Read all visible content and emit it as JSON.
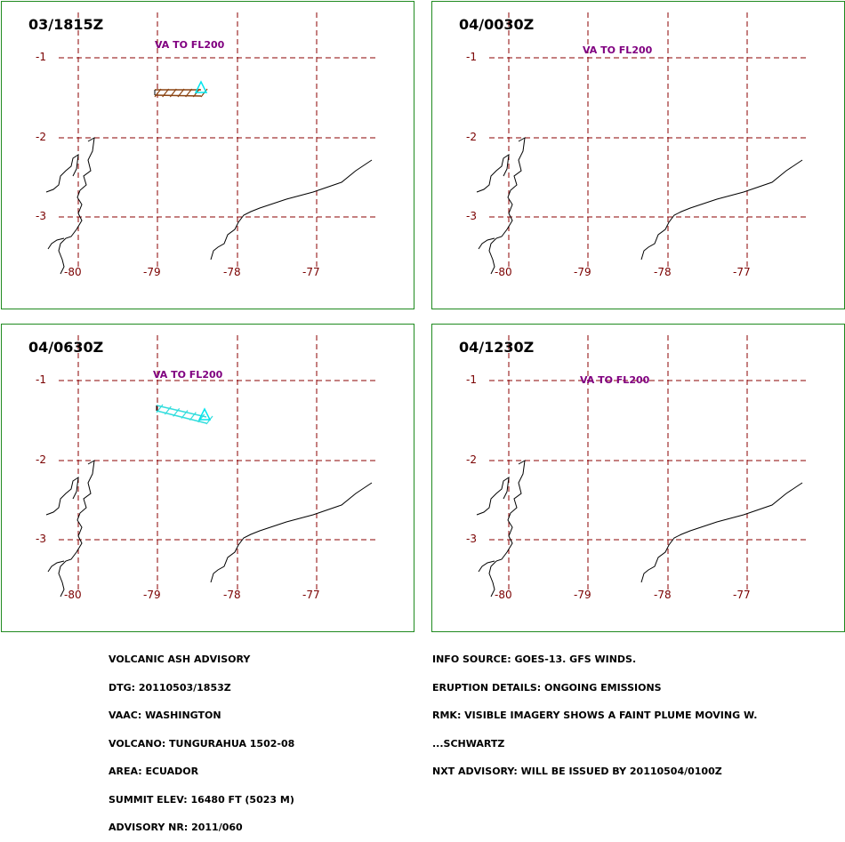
{
  "panels": [
    {
      "time": "03/1815Z",
      "label": "VA TO FL200",
      "plume_color": "#8b4513"
    },
    {
      "time": "04/0030Z",
      "label": "VA TO FL200",
      "plume_color": "#22cc22"
    },
    {
      "time": "04/0630Z",
      "label": "VA TO FL200",
      "plume_color": "#33dddd"
    },
    {
      "time": "04/1230Z",
      "label": "VA TO FL200",
      "plume_color": "#cc22cc"
    }
  ],
  "lat_ticks": [
    "-1",
    "-2",
    "-3"
  ],
  "lon_ticks": [
    "-80",
    "-79",
    "-78",
    "-77"
  ],
  "advisory_left": [
    "VOLCANIC ASH ADVISORY",
    "DTG: 20110503/1853Z",
    "VAAC: WASHINGTON",
    "VOLCANO: TUNGURAHUA 1502-08",
    "AREA: ECUADOR",
    "SUMMIT ELEV: 16480 FT (5023 M)",
    "ADVISORY NR: 2011/060"
  ],
  "advisory_right": [
    "INFO SOURCE: GOES-13. GFS WINDS.",
    "ERUPTION DETAILS: ONGOING EMISSIONS",
    "RMK: VISIBLE IMAGERY SHOWS A FAINT PLUME MOVING W.",
    "...SCHWARTZ",
    "NXT ADVISORY: WILL BE ISSUED BY 20110504/0100Z"
  ],
  "colors": {
    "grid": "#8b0000",
    "frame": "#1f8a1f",
    "label": "#800080",
    "volcano": "#00e5ee"
  }
}
